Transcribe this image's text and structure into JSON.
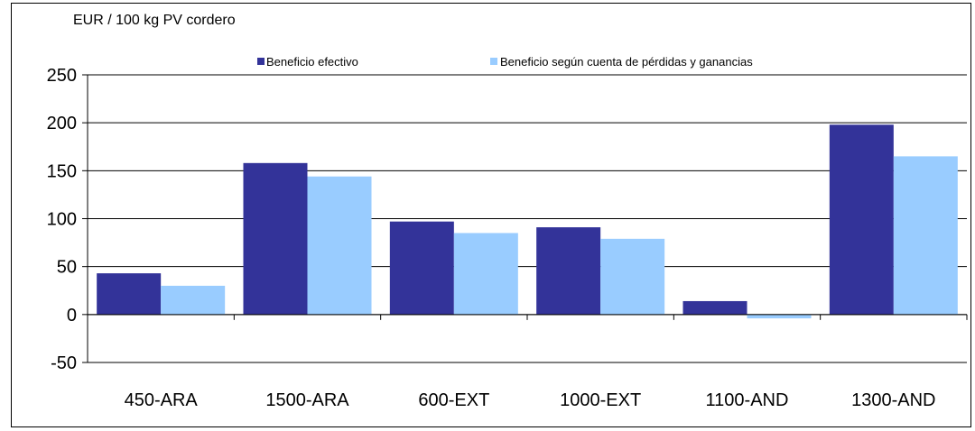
{
  "chart_data": {
    "type": "bar",
    "unit_label": "EUR / 100 kg PV cordero",
    "categories": [
      "450-ARA",
      "1500-ARA",
      "600-EXT",
      "1000-EXT",
      "1100-AND",
      "1300-AND"
    ],
    "series": [
      {
        "name": "Beneficio efectivo",
        "color": "#333399",
        "values": [
          43,
          158,
          97,
          91,
          14,
          198
        ]
      },
      {
        "name": "Beneficio según cuenta de pérdidas y ganancias",
        "color": "#99ccff",
        "values": [
          30,
          144,
          85,
          79,
          -4,
          165
        ]
      }
    ],
    "ylim": [
      -50,
      250
    ],
    "yticks": [
      "-50",
      "0",
      "50",
      "100",
      "150",
      "200",
      "250"
    ],
    "grid": true,
    "legend_position": "top"
  }
}
